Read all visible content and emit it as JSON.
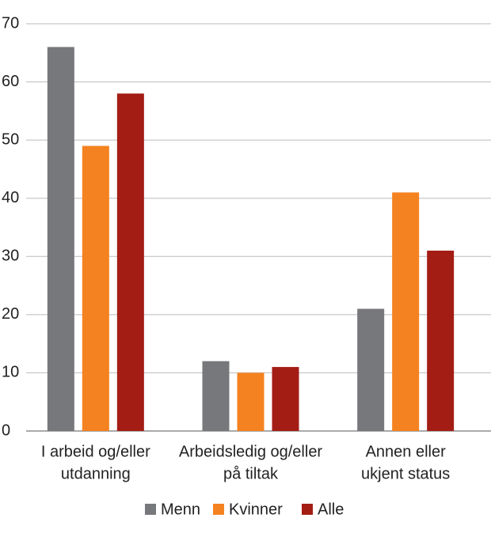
{
  "chart_data": {
    "type": "bar",
    "categories": [
      [
        "I arbeid og/eller",
        "utdanning"
      ],
      [
        "Arbeidsledig og/eller",
        "på tiltak"
      ],
      [
        "Annen eller",
        "ukjent status"
      ]
    ],
    "series": [
      {
        "name": "Menn",
        "color": "#77787b",
        "values": [
          66,
          12,
          21
        ]
      },
      {
        "name": "Kvinner",
        "color": "#f58220",
        "values": [
          49,
          10,
          41
        ]
      },
      {
        "name": "Alle",
        "color": "#a31d15",
        "values": [
          58,
          11,
          31
        ]
      }
    ],
    "ylim": [
      0,
      70
    ],
    "yticks": [
      0,
      10,
      20,
      30,
      40,
      50,
      60,
      70
    ],
    "grid": true
  }
}
